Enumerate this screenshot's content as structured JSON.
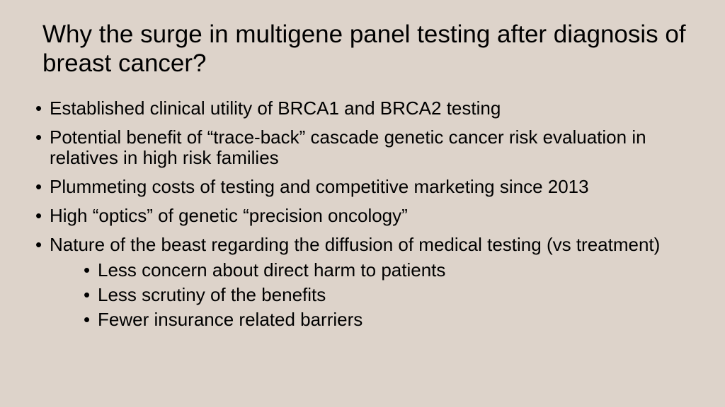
{
  "background_color": "#ddd3ca",
  "text_color": "#000000",
  "font_family": "Arial, Helvetica, sans-serif",
  "title": {
    "text": "Why the surge in multigene panel testing after diagnosis of breast cancer?",
    "fontsize": 35
  },
  "bullets": {
    "fontsize": 26,
    "items": [
      {
        "text": "Established clinical utility of BRCA1 and BRCA2 testing"
      },
      {
        "text": "Potential benefit of “trace-back” cascade genetic cancer risk evaluation in relatives in high risk families"
      },
      {
        "text": "Plummeting costs of testing and competitive marketing since 2013"
      },
      {
        "text": "High “optics” of genetic “precision oncology”"
      },
      {
        "text": "Nature of the beast regarding the diffusion of medical testing (vs treatment)",
        "sub": [
          "Less concern about direct harm to patients",
          "Less scrutiny of the benefits",
          "Fewer insurance related barriers"
        ]
      }
    ]
  }
}
